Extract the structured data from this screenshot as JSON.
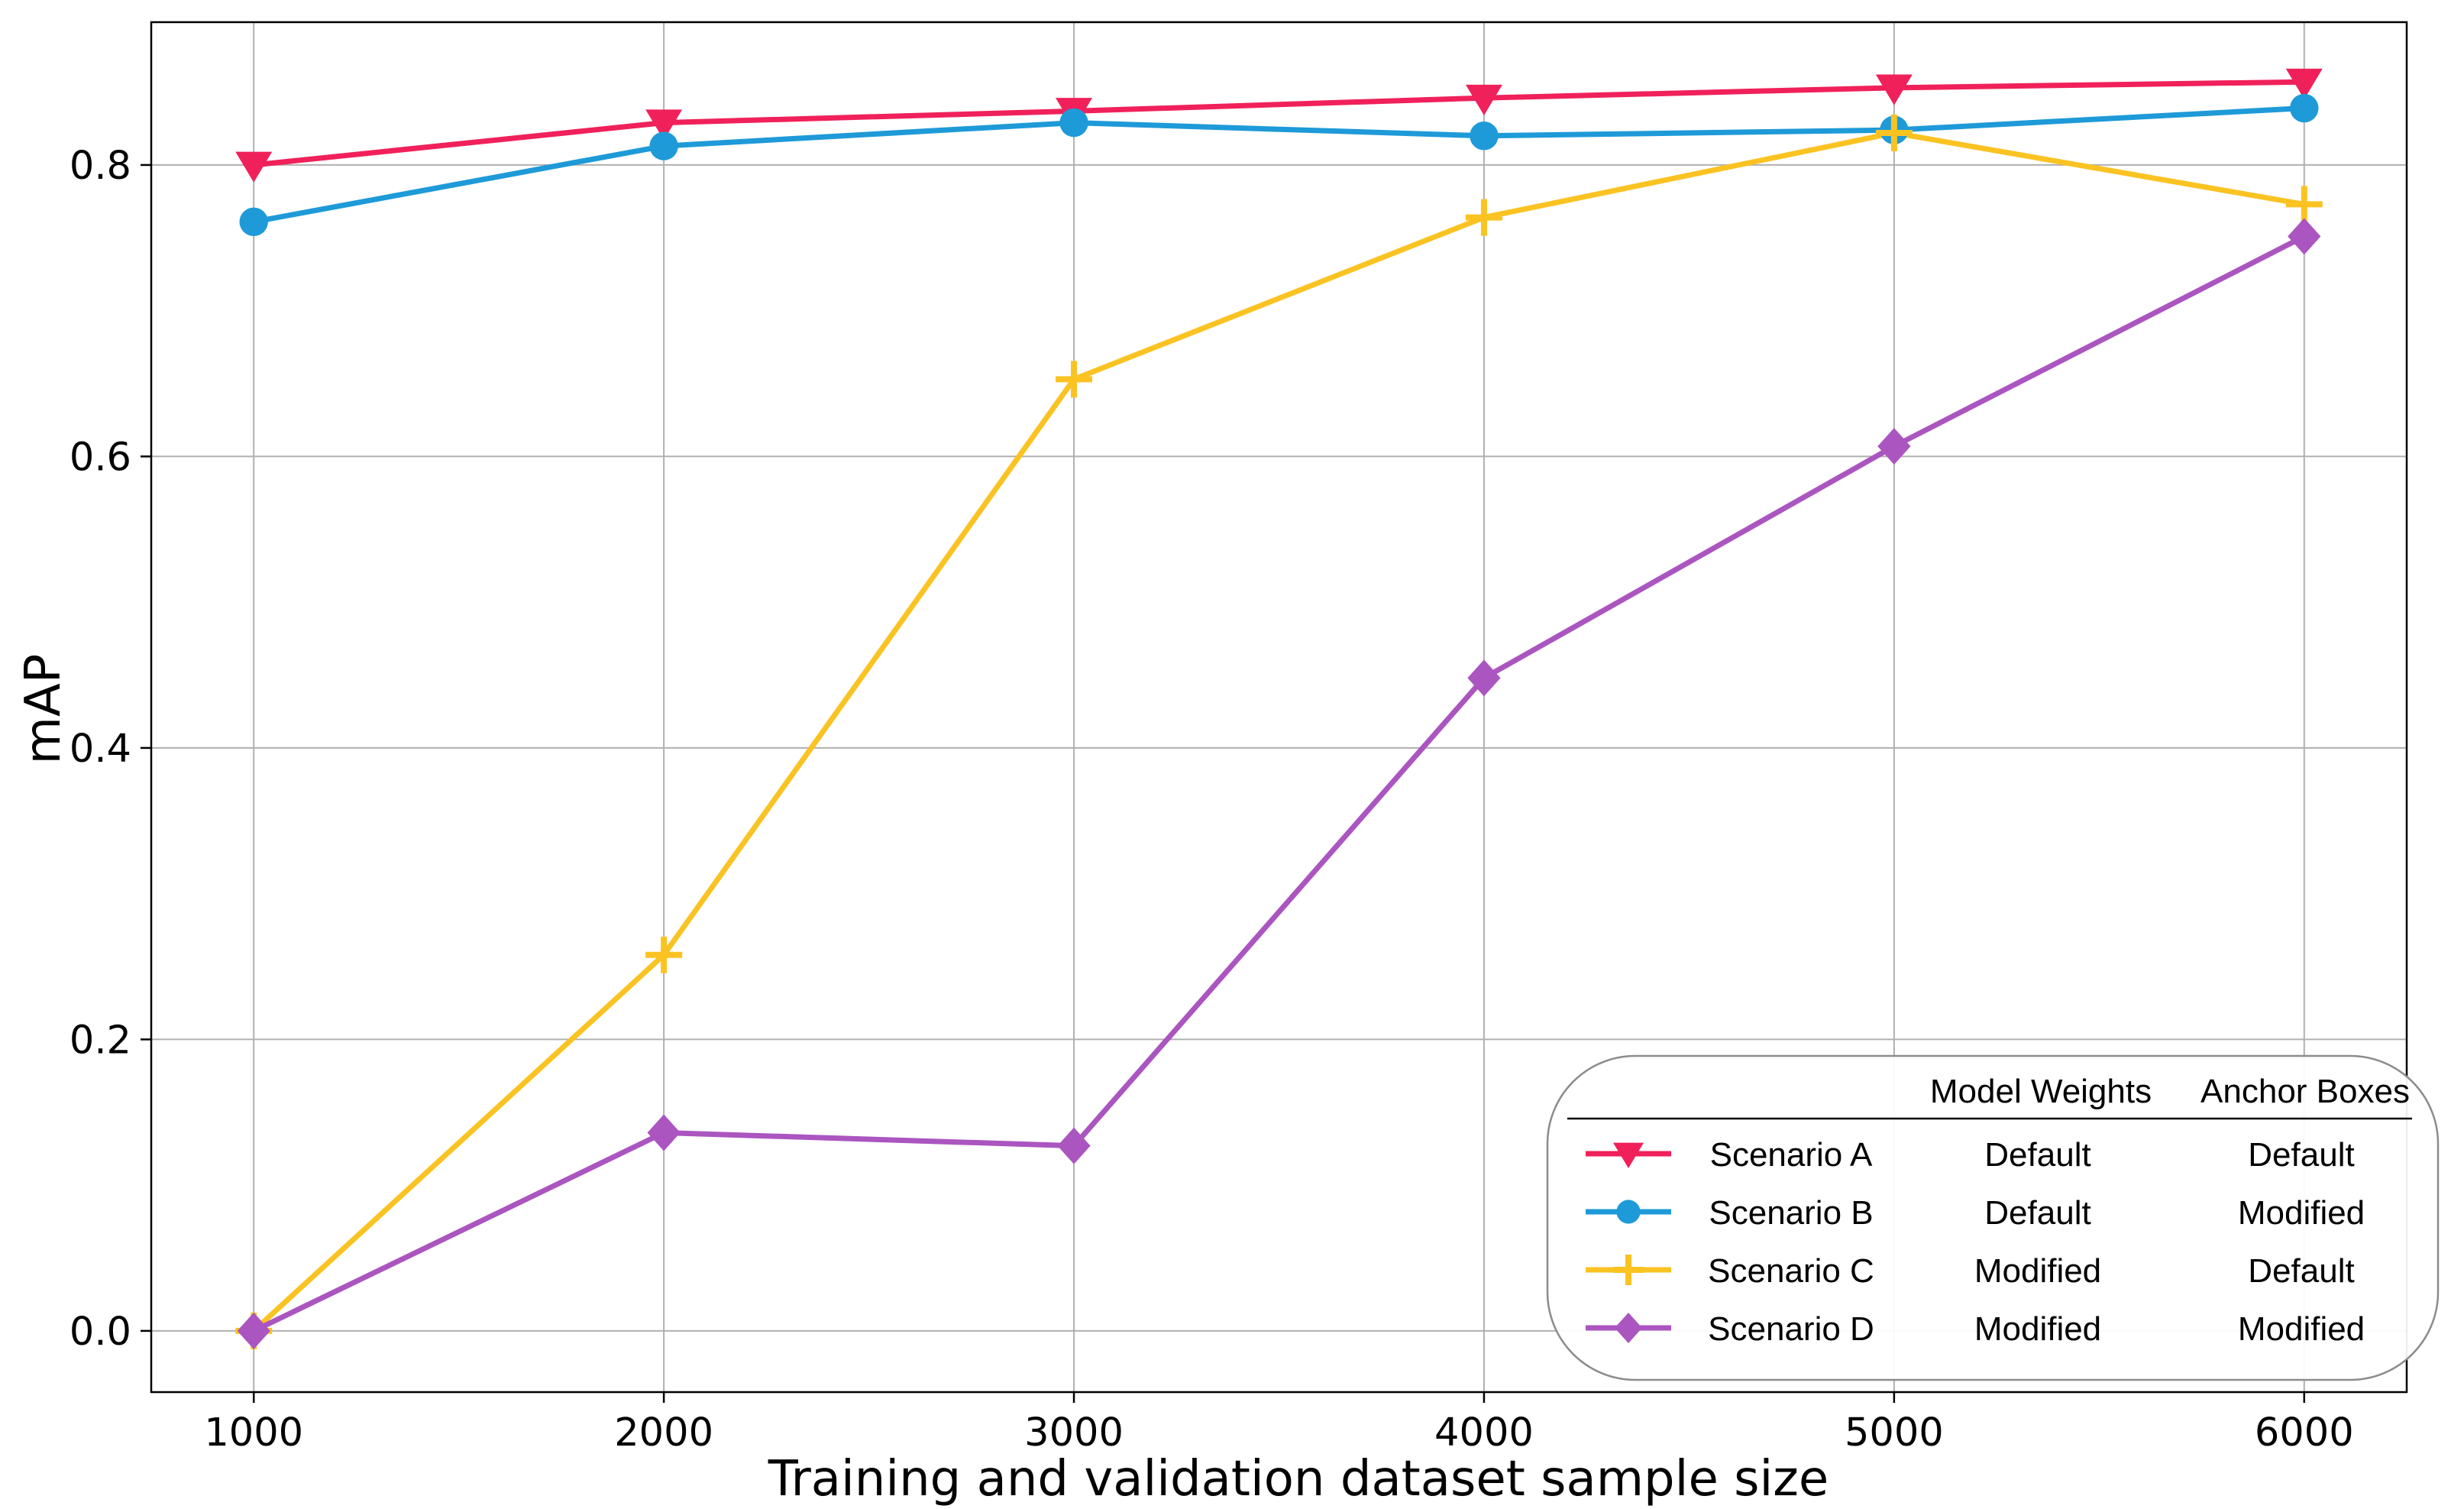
{
  "chart_data": {
    "type": "line",
    "title": "",
    "xlabel": "Training and validation dataset sample size",
    "ylabel": "mAP",
    "x": [
      1000,
      2000,
      3000,
      4000,
      5000,
      6000
    ],
    "xlim": [
      750,
      6250
    ],
    "ylim": [
      -0.042,
      0.898
    ],
    "xticks": [
      1000,
      2000,
      3000,
      4000,
      5000,
      6000
    ],
    "xtick_labels": [
      "1000",
      "2000",
      "3000",
      "4000",
      "5000",
      "6000"
    ],
    "yticks": [
      0.0,
      0.2,
      0.4,
      0.6,
      0.8
    ],
    "ytick_labels": [
      "0.0",
      "0.2",
      "0.4",
      "0.6",
      "0.8"
    ],
    "grid": true,
    "legend_position": "bottom-right",
    "legend_headers": [
      "Model Weights",
      "Anchor Boxes"
    ],
    "series": [
      {
        "name": "Scenario A",
        "model_weights": "Default",
        "anchor_boxes": "Default",
        "color": "#f0215a",
        "marker": "triangle-down",
        "values": [
          0.8,
          0.829,
          0.837,
          0.846,
          0.853,
          0.857
        ]
      },
      {
        "name": "Scenario B",
        "model_weights": "Default",
        "anchor_boxes": "Modified",
        "color": "#1e9ad8",
        "marker": "circle",
        "values": [
          0.761,
          0.813,
          0.829,
          0.82,
          0.824,
          0.839
        ]
      },
      {
        "name": "Scenario C",
        "model_weights": "Modified",
        "anchor_boxes": "Default",
        "color": "#fac322",
        "marker": "plus",
        "values": [
          0.0,
          0.258,
          0.653,
          0.764,
          0.822,
          0.773
        ]
      },
      {
        "name": "Scenario D",
        "model_weights": "Modified",
        "anchor_boxes": "Modified",
        "color": "#ab55c0",
        "marker": "diamond",
        "values": [
          0.0,
          0.136,
          0.127,
          0.448,
          0.607,
          0.751
        ]
      }
    ]
  }
}
